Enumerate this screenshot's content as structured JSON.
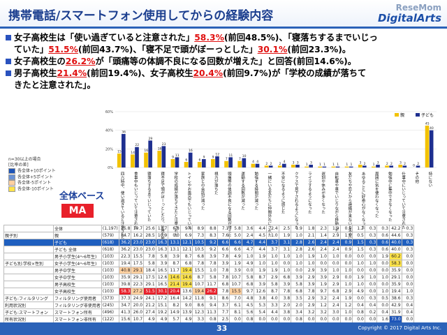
{
  "header": {
    "title": "携帯電話/スマートフォン使用してからの経験内容",
    "brand_top": "ReseMom",
    "brand_bottom": "DigitalArts"
  },
  "bullets": [
    {
      "pre": "女子高校生は「使い過ぎていると注意された」",
      "hl": "58.3%",
      "post": "(前回48.5%)、「寝落ちするまでいじっ"
    },
    {
      "pre": "ていた」",
      "hl": "51.5%",
      "post": "(前回43.7%)、「寝不足で頭がぼーっとした」",
      "hl2": "30.1%",
      "post2": "(前回23.3%)。"
    },
    {
      "pre": "女子高校生の",
      "hl": "26.2%",
      "post": "が「頭痛等の体調不良になる回数が増えた」と回答(前回14.6%)。"
    },
    {
      "pre": "男子高校生",
      "hl": "21.4%",
      "post": "(前回19.4%)、女子高校生",
      "hl2": "20.4%",
      "post2": "(前回9.7%)が「学校の成績が落ちて"
    },
    {
      "pre": "きたと注意された」。",
      "hl": "",
      "post": ""
    }
  ],
  "side": {
    "note": "n=30以上の場合",
    "legend_title": "[比率の差]",
    "legend": [
      "各全体+10ポイント",
      "各全体+5ポイント",
      "各全体-5ポイント",
      "各全体-10ポイント"
    ],
    "base_label": "全体ベース",
    "ma_label": "MA"
  },
  "colors": {
    "oya": "#f2c200",
    "kodomo": "#1e2f8f",
    "accent": "#2b62b8",
    "red": "#e8202a"
  },
  "chart_data": {
    "type": "bar",
    "ylim": [
      0,
      60
    ],
    "yticks": [
      "0%",
      "20%",
      "40%",
      "60%"
    ],
    "series_labels": [
      "親",
      "子ども"
    ],
    "categories": [
      "四六時中、使い過ぎていると注意された",
      "食事中もいじっていて注意された",
      "寝落ちするまでいじっていた",
      "寝不足で頭がぼーっとしたり、注意力散漫になった",
      "学校の成績が落ちてきたと注意された",
      "トイレやお風呂でもいじっていた",
      "家族との会話が減った",
      "視力が落ちた",
      "頭痛等の体調不良になる回数が増えた",
      "運動する回数が減った",
      "勉強する時間が減った",
      "一緒にいる友だちに仲間外れにされた",
      "不安になるように感じた",
      "クラスで見下されるようになった",
      "ライラするようになった",
      "遅刻や休みが多くなった",
      "自転車や車でいじりながら移動した",
      "友だちや恋人から連絡が来ないと不安になった",
      "あゆることに好奇心がなくなった",
      "周囲に気を使わなくなった",
      "勉強中に集中できなくなった",
      "仕事中にいじっていて注意された",
      "その他",
      "特にない"
    ],
    "series": [
      {
        "name": "親",
        "values": [
          15,
          14,
          16,
          18,
          9,
          6,
          6,
          9,
          7,
          7,
          4,
          2,
          2,
          3,
          1,
          1,
          1,
          1,
          3,
          1,
          2,
          3,
          0,
          45
        ]
      },
      {
        "name": "子ども",
        "values": [
          36,
          22,
          29,
          23,
          11,
          16,
          9,
          12,
          11,
          10,
          4,
          2,
          4,
          3,
          3,
          1,
          1,
          1,
          2,
          3,
          2,
          2,
          2,
          40
        ]
      }
    ]
  },
  "table": {
    "columns_count": 25,
    "rows": [
      {
        "g1": "",
        "g2": "全体",
        "n": "(1,197)",
        "vals": [
          "25.8",
          "19.7",
          "25.6",
          "13.7",
          "6.8",
          "9.6",
          "8.9",
          "8.8",
          "7.1",
          "5.8",
          "3.6",
          "4.4",
          "2.4",
          "2.5",
          "1.9",
          "1.8",
          "2.3",
          "1.9",
          "0.9",
          "1.2",
          "0.3",
          "0.3",
          "42.2",
          "0.3"
        ]
      },
      {
        "g1": "親子別",
        "g2": "親",
        "n": "(579)",
        "vals": [
          "14.7",
          "16.2",
          "28.5",
          "10.9",
          "0.0",
          "6.9",
          "7.3",
          "8.3",
          "7.6",
          "5.0",
          "2.4",
          "4.5",
          "1.0",
          "1.9",
          "1.0",
          "2.1",
          "1.4",
          "2.9",
          "1.0",
          "0.5",
          "0.3",
          "0.6",
          "44.6",
          "0.3"
        ]
      },
      {
        "g1": "",
        "g2": "子ども",
        "n": "(618)",
        "vals": [
          "36.2",
          "23.0",
          "23.0",
          "16.3",
          "13.1",
          "12.1",
          "10.5",
          "9.2",
          "6.6",
          "6.6",
          "4.7",
          "4.4",
          "3.7",
          "3.1",
          "2.8",
          "2.6",
          "2.4",
          "2.4",
          "0.9",
          "1.5",
          "0.3",
          "0.6",
          "40.0",
          "0.3"
        ],
        "cls": "sub"
      },
      {
        "g1": "",
        "g2": "子ども 全体",
        "n": "(618)",
        "vals": [
          "36.2",
          "23.0",
          "23.0",
          "16.3",
          "13.1",
          "12.1",
          "10.5",
          "9.2",
          "6.6",
          "6.6",
          "4.7",
          "4.4",
          "3.7",
          "3.1",
          "2.8",
          "2.6",
          "2.4",
          "2.4",
          "0.9",
          "1.5",
          "0.3",
          "0.6",
          "40.0",
          "0.3"
        ]
      },
      {
        "g1": "",
        "g2": "男子小学生(4〜6年生)",
        "n": "(103)",
        "vals": [
          "22.3",
          "15.5",
          "7.8",
          "5.8",
          "3.9",
          "8.7",
          "6.8",
          "3.9",
          "7.8",
          "4.9",
          "1.0",
          "1.9",
          "1.0",
          "1.0",
          "1.0",
          "1.9",
          "1.0",
          "1.0",
          "0.0",
          "0.0",
          "0.0",
          "1.9",
          "60.2",
          "0.0"
        ]
      },
      {
        "g1": "子ども別:学校×性別",
        "g2": "女子小学生(4〜6年生)",
        "n": "(103)",
        "vals": [
          "19.4",
          "17.5",
          "5.8",
          "3.9",
          "8.7",
          "6.8",
          "7.8",
          "7.8",
          "3.9",
          "1.9",
          "4.9",
          "1.0",
          "1.0",
          "0.0",
          "1.0",
          "1.0",
          "0.0",
          "0.0",
          "0.0",
          "1.0",
          "1.0",
          "0.0",
          "58.3",
          "0.0"
        ]
      },
      {
        "g1": "",
        "g2": "男子中学生",
        "n": "(103)",
        "vals": [
          "40.8",
          "29.1",
          "18.4",
          "16.5",
          "11.7",
          "19.4",
          "15.5",
          "1.0",
          "7.8",
          "3.9",
          "0.0",
          "1.9",
          "1.9",
          "1.0",
          "0.0",
          "2.9",
          "3.9",
          "1.0",
          "1.0",
          "0.0",
          "0.0",
          "0.0",
          "35.9",
          "0.0"
        ]
      },
      {
        "g1": "",
        "g2": "女子中学生",
        "n": "(103)",
        "vals": [
          "35.9",
          "29.1",
          "17.5",
          "12.6",
          "14.6",
          "14.6",
          "8.7",
          "5.8",
          "7.8",
          "10.7",
          "5.8",
          "8.7",
          "2.9",
          "6.8",
          "3.9",
          "2.9",
          "3.9",
          "2.9",
          "0.0",
          "1.9",
          "1.0",
          "1.0",
          "29.1",
          "0.0"
        ]
      },
      {
        "g1": "",
        "g2": "男子高校生",
        "n": "(103)",
        "vals": [
          "39.8",
          "22.3",
          "29.1",
          "16.5",
          "21.4",
          "19.4",
          "10.7",
          "11.7",
          "6.8",
          "10.7",
          "6.8",
          "3.9",
          "5.8",
          "3.9",
          "5.8",
          "3.9",
          "1.9",
          "2.9",
          "1.0",
          "1.0",
          "0.0",
          "0.0",
          "35.9",
          "0.0"
        ]
      },
      {
        "g1": "",
        "g2": "女子高校生",
        "n": "(103)",
        "vals": [
          "58.3",
          "27.2",
          "51.5",
          "30.1",
          "20.4",
          "13.6",
          "19.4",
          "26.2",
          "7.8",
          "15.5",
          "9.7",
          "12.6",
          "8.7",
          "7.8",
          "6.8",
          "7.8",
          "9.7",
          "6.8",
          "2.9",
          "4.9",
          "0.0",
          "1.0",
          "19.4",
          "1.0"
        ]
      },
      {
        "g1": "子ども:フィルタリング",
        "g2": "フィルタリング使用者",
        "n": "(373)",
        "vals": [
          "37.3",
          "24.9",
          "24.1",
          "17.2",
          "16.4",
          "14.2",
          "11.8",
          "9.1",
          "8.6",
          "7.0",
          "4.8",
          "3.8",
          "4.0",
          "3.8",
          "3.5",
          "2.9",
          "3.2",
          "2.4",
          "1.9",
          "0.0",
          "0.3",
          "0.5",
          "38.6",
          "0.3"
        ]
      },
      {
        "g1": "利用状況別",
        "g2": "フィルタリング非使用者",
        "n": "(245)",
        "vals": [
          "34.7",
          "20.0",
          "21.2",
          "15.1",
          "8.2",
          "9.0",
          "8.6",
          "9.4",
          "3.7",
          "6.1",
          "4.5",
          "5.3",
          "3.3",
          "2.0",
          "2.0",
          "2.9",
          "1.2",
          "2.4",
          "1.2",
          "0.4",
          "0.4",
          "0.0",
          "42.9",
          "0.4"
        ]
      },
      {
        "g1": "子ども:スマートフォン",
        "g2": "スマートフォン所有",
        "n": "(496)",
        "vals": [
          "41.3",
          "26.0",
          "27.4",
          "19.2",
          "14.9",
          "13.9",
          "12.3",
          "11.3",
          "7.7",
          "8.1",
          "5.6",
          "5.4",
          "4.4",
          "3.8",
          "3.4",
          "3.2",
          "3.2",
          "3.0",
          "1.0",
          "0.8",
          "0.2",
          "0.4",
          "31.9",
          "0.4"
        ]
      },
      {
        "g1": "所有状況別",
        "g2": "スマートフォン非所有",
        "n": "(122)",
        "vals": [
          "15.6",
          "10.7",
          "4.9",
          "4.9",
          "5.7",
          "4.9",
          "3.3",
          "0.8",
          "2.5",
          "0.0",
          "0.8",
          "0.0",
          "0.0",
          "0.0",
          "0.8",
          "0.0",
          "0.0",
          "0.0",
          "0.0",
          "0.0",
          "0.0",
          "1.6",
          "73.0",
          "0.0"
        ]
      }
    ],
    "highlights": {
      "4": {
        "22": "h3"
      },
      "5": {
        "22": "h3"
      },
      "6": {
        "0": "h4",
        "1": "h4",
        "5": "h3"
      },
      "7": {
        "4": "h3",
        "5": "h3"
      },
      "8": {
        "4": "h3",
        "5": "h3"
      },
      "9": {
        "0": "hr",
        "2": "hr",
        "3": "hr",
        "4": "hr",
        "7": "hr",
        "1": "h4",
        "6": "h4",
        "9": "h4"
      },
      "13": {
        "22": "h1"
      }
    }
  },
  "footer": {
    "page": "33",
    "copyright": "Copyright © 2017 Digital Arts Inc."
  }
}
